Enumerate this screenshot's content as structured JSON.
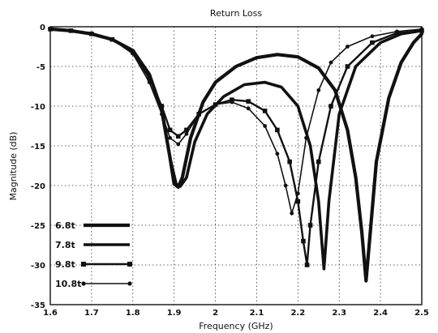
{
  "chart_data": {
    "type": "line",
    "title": "Return Loss",
    "xlabel": "Frequency (GHz)",
    "ylabel": "Magnitude (dB)",
    "xlim": [
      1.6,
      2.5
    ],
    "ylim": [
      -35,
      0
    ],
    "xticks": [
      "1.6",
      "1.7",
      "1.8",
      "1.9",
      "2",
      "2.1",
      "2.2",
      "2.3",
      "2.4",
      "2.5"
    ],
    "yticks": [
      "0",
      "-5",
      "-10",
      "-15",
      "-20",
      "-25",
      "-30",
      "-35"
    ],
    "grid": true,
    "legend_position": "bottom-left",
    "series": [
      {
        "name": "6.8t",
        "color": "#111111",
        "marker": "none",
        "points": [
          [
            1.6,
            -0.3
          ],
          [
            1.65,
            -0.5
          ],
          [
            1.7,
            -0.9
          ],
          [
            1.75,
            -1.6
          ],
          [
            1.8,
            -3.0
          ],
          [
            1.84,
            -6.0
          ],
          [
            1.87,
            -10.5
          ],
          [
            1.89,
            -16.5
          ],
          [
            1.9,
            -19.8
          ],
          [
            1.91,
            -20.2
          ],
          [
            1.92,
            -19.0
          ],
          [
            1.94,
            -14.0
          ],
          [
            1.97,
            -9.5
          ],
          [
            2.0,
            -7.0
          ],
          [
            2.05,
            -5.0
          ],
          [
            2.1,
            -3.9
          ],
          [
            2.15,
            -3.5
          ],
          [
            2.2,
            -3.8
          ],
          [
            2.25,
            -5.2
          ],
          [
            2.29,
            -8.0
          ],
          [
            2.32,
            -13.0
          ],
          [
            2.34,
            -19.0
          ],
          [
            2.355,
            -26.0
          ],
          [
            2.365,
            -32.0
          ],
          [
            2.375,
            -26.0
          ],
          [
            2.39,
            -17.0
          ],
          [
            2.42,
            -9.0
          ],
          [
            2.45,
            -4.5
          ],
          [
            2.48,
            -2.0
          ],
          [
            2.5,
            -0.9
          ]
        ]
      },
      {
        "name": "7.8t",
        "color": "#111111",
        "marker": "none",
        "points": [
          [
            1.6,
            -0.3
          ],
          [
            1.65,
            -0.5
          ],
          [
            1.7,
            -0.9
          ],
          [
            1.75,
            -1.6
          ],
          [
            1.8,
            -3.0
          ],
          [
            1.84,
            -6.0
          ],
          [
            1.87,
            -10.5
          ],
          [
            1.89,
            -16.5
          ],
          [
            1.905,
            -19.8
          ],
          [
            1.915,
            -20.1
          ],
          [
            1.93,
            -19.0
          ],
          [
            1.95,
            -14.5
          ],
          [
            1.98,
            -11.0
          ],
          [
            2.02,
            -8.8
          ],
          [
            2.07,
            -7.3
          ],
          [
            2.12,
            -7.0
          ],
          [
            2.16,
            -7.6
          ],
          [
            2.2,
            -10.0
          ],
          [
            2.23,
            -15.0
          ],
          [
            2.25,
            -22.0
          ],
          [
            2.263,
            -30.5
          ],
          [
            2.275,
            -22.0
          ],
          [
            2.3,
            -11.0
          ],
          [
            2.34,
            -5.0
          ],
          [
            2.4,
            -2.0
          ],
          [
            2.45,
            -0.9
          ],
          [
            2.5,
            -0.5
          ]
        ]
      },
      {
        "name": "9.8t",
        "color": "#111111",
        "marker": "square",
        "points": [
          [
            1.6,
            -0.3
          ],
          [
            1.65,
            -0.5
          ],
          [
            1.7,
            -0.9
          ],
          [
            1.75,
            -1.6
          ],
          [
            1.8,
            -3.2
          ],
          [
            1.84,
            -6.5
          ],
          [
            1.87,
            -10.0
          ],
          [
            1.89,
            -13.0
          ],
          [
            1.91,
            -13.8
          ],
          [
            1.93,
            -13.0
          ],
          [
            1.96,
            -11.0
          ],
          [
            2.0,
            -9.8
          ],
          [
            2.04,
            -9.2
          ],
          [
            2.08,
            -9.4
          ],
          [
            2.12,
            -10.6
          ],
          [
            2.15,
            -13.0
          ],
          [
            2.18,
            -17.0
          ],
          [
            2.2,
            -22.0
          ],
          [
            2.213,
            -27.0
          ],
          [
            2.222,
            -30.0
          ],
          [
            2.23,
            -25.0
          ],
          [
            2.25,
            -17.0
          ],
          [
            2.28,
            -10.0
          ],
          [
            2.32,
            -5.0
          ],
          [
            2.38,
            -2.0
          ],
          [
            2.44,
            -0.8
          ],
          [
            2.5,
            -0.5
          ]
        ]
      },
      {
        "name": "10.8t",
        "color": "#111111",
        "marker": "circle",
        "points": [
          [
            1.6,
            -0.3
          ],
          [
            1.65,
            -0.5
          ],
          [
            1.7,
            -0.9
          ],
          [
            1.75,
            -1.6
          ],
          [
            1.8,
            -3.4
          ],
          [
            1.84,
            -7.0
          ],
          [
            1.87,
            -11.0
          ],
          [
            1.89,
            -14.0
          ],
          [
            1.91,
            -14.8
          ],
          [
            1.93,
            -13.5
          ],
          [
            1.96,
            -11.0
          ],
          [
            2.0,
            -9.8
          ],
          [
            2.04,
            -9.5
          ],
          [
            2.08,
            -10.3
          ],
          [
            2.12,
            -12.5
          ],
          [
            2.15,
            -16.0
          ],
          [
            2.17,
            -20.0
          ],
          [
            2.185,
            -23.5
          ],
          [
            2.2,
            -21.0
          ],
          [
            2.22,
            -14.0
          ],
          [
            2.25,
            -8.0
          ],
          [
            2.28,
            -4.5
          ],
          [
            2.32,
            -2.5
          ],
          [
            2.38,
            -1.2
          ],
          [
            2.44,
            -0.6
          ],
          [
            2.5,
            -0.3
          ]
        ]
      }
    ]
  }
}
